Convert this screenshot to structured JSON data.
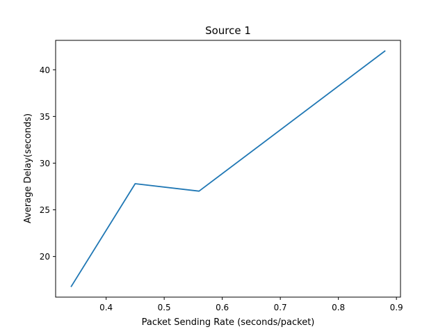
{
  "chart_data": {
    "type": "line",
    "title": "Source 1",
    "xlabel": "Packet Sending Rate (seconds/packet)",
    "ylabel": "Average Delay(seconds)",
    "xlim": [
      0.313,
      0.907
    ],
    "ylim": [
      15.65,
      43.15
    ],
    "xticks": [
      0.4,
      0.5,
      0.6,
      0.7,
      0.8,
      0.9
    ],
    "xtick_labels": [
      "0.4",
      "0.5",
      "0.6",
      "0.7",
      "0.8",
      "0.9"
    ],
    "yticks": [
      20,
      25,
      30,
      35,
      40
    ],
    "ytick_labels": [
      "20",
      "25",
      "30",
      "35",
      "40"
    ],
    "grid": false,
    "series": [
      {
        "color": "#1f77b4",
        "x": [
          0.34,
          0.45,
          0.56,
          0.88
        ],
        "y": [
          16.8,
          27.8,
          27.0,
          42.0
        ]
      }
    ]
  }
}
